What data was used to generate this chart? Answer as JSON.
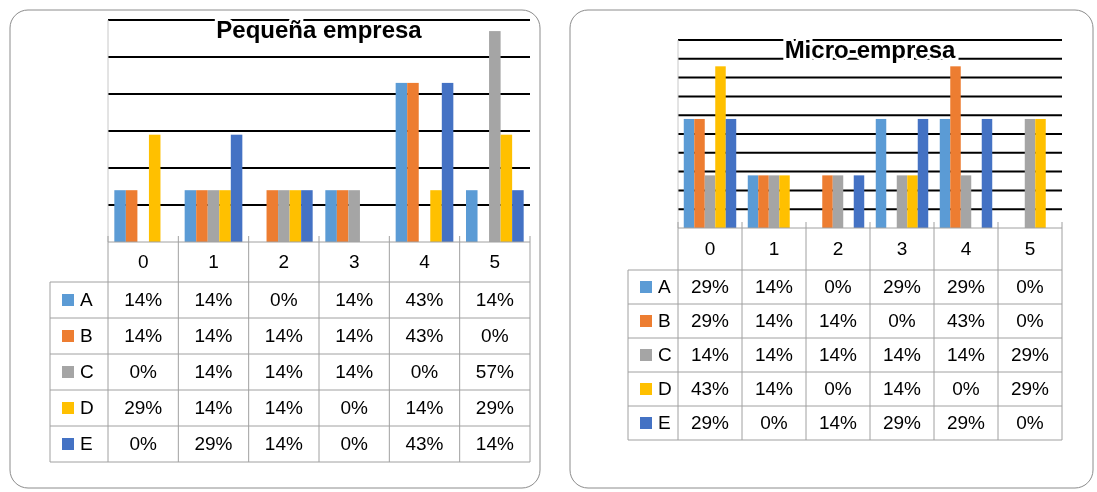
{
  "chart_data": [
    {
      "type": "bar",
      "title": "Pequeña empresa",
      "categories": [
        "0",
        "1",
        "2",
        "3",
        "4",
        "5"
      ],
      "series": [
        {
          "name": "A",
          "color": "#5b9bd5",
          "values": [
            14,
            14,
            0,
            14,
            43,
            14
          ],
          "value_labels": [
            "14%",
            "14%",
            "0%",
            "14%",
            "43%",
            "14%"
          ]
        },
        {
          "name": "B",
          "color": "#ed7d31",
          "values": [
            14,
            14,
            14,
            14,
            43,
            0
          ],
          "value_labels": [
            "14%",
            "14%",
            "14%",
            "14%",
            "43%",
            "0%"
          ]
        },
        {
          "name": "C",
          "color": "#a5a5a5",
          "values": [
            0,
            14,
            14,
            14,
            0,
            57
          ],
          "value_labels": [
            "0%",
            "14%",
            "14%",
            "14%",
            "0%",
            "57%"
          ]
        },
        {
          "name": "D",
          "color": "#ffc000",
          "values": [
            29,
            14,
            14,
            0,
            14,
            29
          ],
          "value_labels": [
            "29%",
            "14%",
            "14%",
            "0%",
            "14%",
            "29%"
          ]
        },
        {
          "name": "E",
          "color": "#4472c4",
          "values": [
            0,
            29,
            14,
            0,
            43,
            14
          ],
          "value_labels": [
            "0%",
            "29%",
            "14%",
            "0%",
            "43%",
            "14%"
          ]
        }
      ],
      "ylim": [
        0,
        60
      ],
      "yticks": [
        {
          "value": 10,
          "label": null
        },
        {
          "value": 20,
          "label": null
        },
        {
          "value": 30,
          "label": null
        },
        {
          "value": 40,
          "label": null
        },
        {
          "value": 50,
          "label": null
        },
        {
          "value": 60,
          "label": null
        }
      ],
      "grid": "y",
      "legend": "bottom",
      "tick_labels": "x"
    },
    {
      "type": "bar",
      "title": "Micro-empresa",
      "categories": [
        "0",
        "1",
        "2",
        "3",
        "4",
        "5"
      ],
      "series": [
        {
          "name": "A",
          "color": "#5b9bd5",
          "values": [
            29,
            14,
            0,
            29,
            29,
            0
          ],
          "value_labels": [
            "29%",
            "14%",
            "0%",
            "29%",
            "29%",
            "0%"
          ]
        },
        {
          "name": "B",
          "color": "#ed7d31",
          "values": [
            29,
            14,
            14,
            0,
            43,
            0
          ],
          "value_labels": [
            "29%",
            "14%",
            "14%",
            "0%",
            "43%",
            "0%"
          ]
        },
        {
          "name": "C",
          "color": "#a5a5a5",
          "values": [
            14,
            14,
            14,
            14,
            14,
            29
          ],
          "value_labels": [
            "14%",
            "14%",
            "14%",
            "14%",
            "14%",
            "29%"
          ]
        },
        {
          "name": "D",
          "color": "#ffc000",
          "values": [
            43,
            14,
            0,
            14,
            0,
            29
          ],
          "value_labels": [
            "43%",
            "14%",
            "0%",
            "14%",
            "0%",
            "29%"
          ]
        },
        {
          "name": "E",
          "color": "#4472c4",
          "values": [
            29,
            0,
            14,
            29,
            29,
            0
          ],
          "value_labels": [
            "29%",
            "0%",
            "14%",
            "29%",
            "29%",
            "0%"
          ]
        }
      ],
      "ylim": [
        0,
        50
      ],
      "yticks": [
        {
          "value": 5,
          "label": null
        },
        {
          "value": 10,
          "label": null
        },
        {
          "value": 15,
          "label": null
        },
        {
          "value": 20,
          "label": null
        },
        {
          "value": 25,
          "label": null
        },
        {
          "value": 30,
          "label": null
        },
        {
          "value": 35,
          "label": null
        },
        {
          "value": 40,
          "label": null
        },
        {
          "value": 45,
          "label": null
        },
        {
          "value": 50,
          "label": null
        }
      ],
      "grid": "y",
      "legend": "bottom",
      "tick_labels": "x"
    }
  ]
}
